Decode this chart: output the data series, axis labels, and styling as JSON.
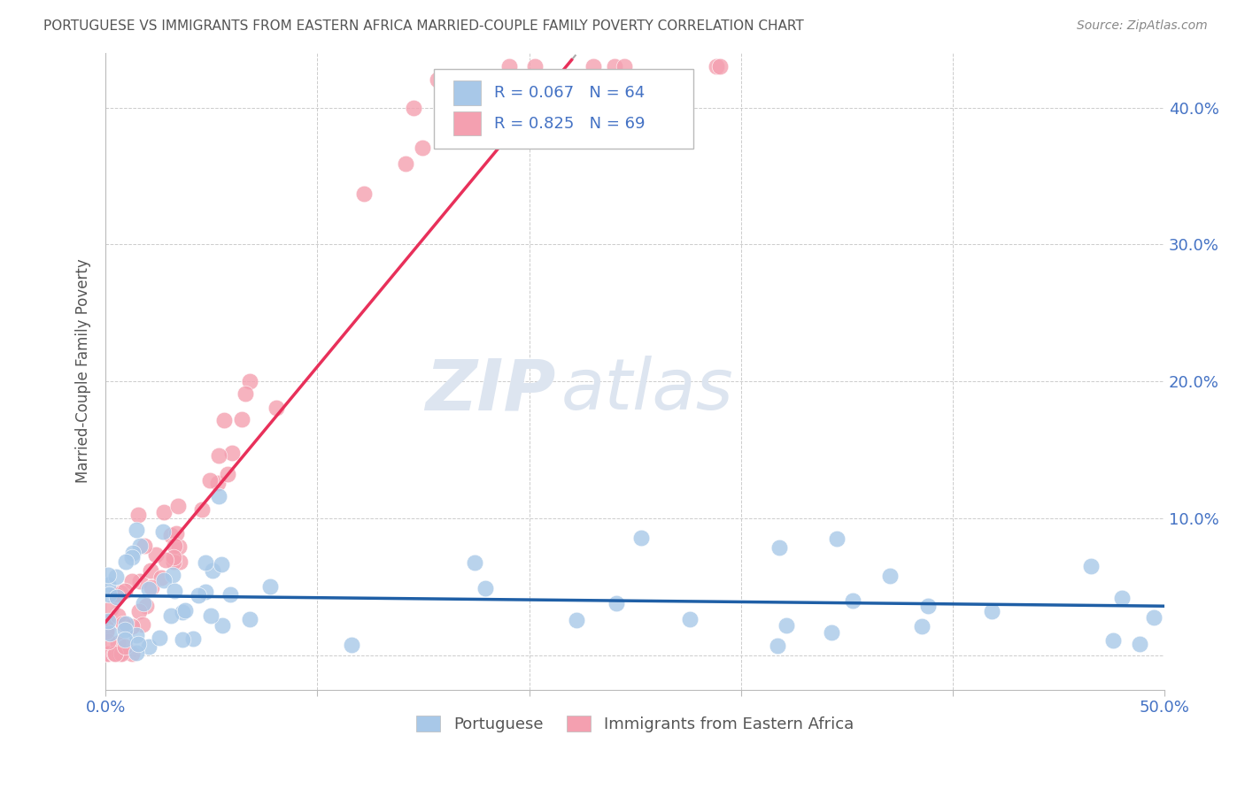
{
  "title": "PORTUGUESE VS IMMIGRANTS FROM EASTERN AFRICA MARRIED-COUPLE FAMILY POVERTY CORRELATION CHART",
  "source": "Source: ZipAtlas.com",
  "ylabel": "Married-Couple Family Poverty",
  "xlim": [
    0.0,
    0.5
  ],
  "ylim": [
    -0.025,
    0.44
  ],
  "portuguese_R": 0.067,
  "portuguese_N": 64,
  "eastern_africa_R": 0.825,
  "eastern_africa_N": 69,
  "blue_color": "#a8c8e8",
  "pink_color": "#f4a0b0",
  "blue_line_color": "#1f5fa6",
  "pink_line_color": "#e8305a",
  "title_color": "#666666",
  "axis_label_color": "#4472c4",
  "watermark_color": "#dde5f0",
  "background_color": "#ffffff",
  "grid_color": "#cccccc",
  "legend_text_color": "#4472c4",
  "legend_border_color": "#cccccc"
}
